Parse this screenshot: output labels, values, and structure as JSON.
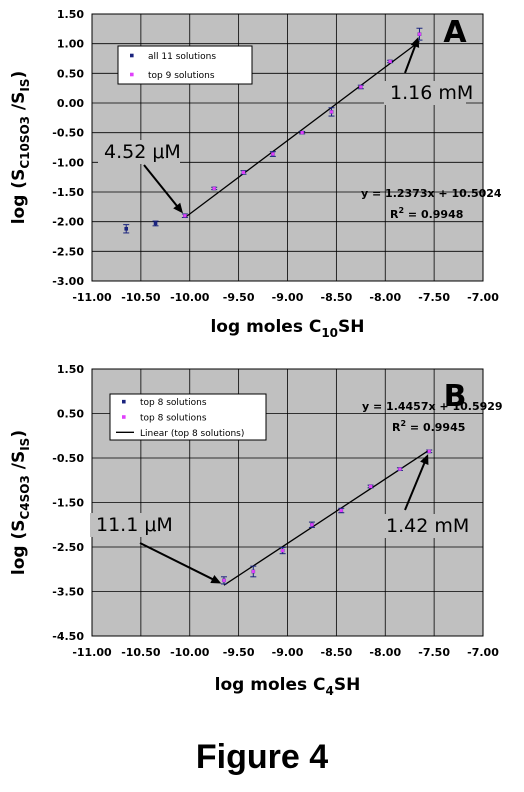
{
  "figure_title": "Figure 4",
  "chart_data": [
    {
      "type": "scatter",
      "panel_label": "A",
      "xlabel_main": "log moles C",
      "xlabel_sub": "10",
      "xlabel_tail": "SH",
      "ylabel_main": "log (S",
      "ylabel_sub1": "C10SO3",
      "ylabel_mid": " /S",
      "ylabel_sub2": "IS",
      "ylabel_tail": ")",
      "xlim": [
        -11.0,
        -7.0
      ],
      "ylim": [
        -3.0,
        1.5
      ],
      "x_ticks": [
        -11.0,
        -10.5,
        -10.0,
        -9.5,
        -9.0,
        -8.5,
        -8.0,
        -7.5,
        -7.0
      ],
      "x_tick_labels": [
        "-11.00",
        "-10.50",
        "-10.00",
        "-9.50",
        "-9.00",
        "-8.50",
        "-8.00",
        "-7.50",
        "-7.00"
      ],
      "y_ticks": [
        1.5,
        1.0,
        0.5,
        0.0,
        -0.5,
        -1.0,
        -1.5,
        -2.0,
        -2.5,
        -3.0
      ],
      "y_tick_labels": [
        "1.50",
        "1.00",
        "0.50",
        "0.00",
        "-0.50",
        "-1.00",
        "-1.50",
        "-2.00",
        "-2.50",
        "-3.00"
      ],
      "grid": true,
      "legend_position": "top-left",
      "series": [
        {
          "name": "all 11 solutions",
          "color": "#1a237e",
          "x": [
            -10.65,
            -10.35,
            -10.05,
            -9.75,
            -9.45,
            -9.15,
            -8.85,
            -8.55,
            -8.25,
            -7.95,
            -7.65
          ],
          "y": [
            -2.12,
            -2.03,
            -1.9,
            -1.44,
            -1.17,
            -0.86,
            -0.5,
            -0.15,
            0.27,
            0.7,
            1.16
          ],
          "err": [
            0.07,
            0.04,
            0.03,
            0.02,
            0.03,
            0.04,
            0.02,
            0.07,
            0.03,
            0.02,
            0.1
          ]
        },
        {
          "name": "top 9 solutions",
          "color": "#e040fb",
          "x": [
            -10.05,
            -9.75,
            -9.45,
            -9.15,
            -8.85,
            -8.55,
            -8.25,
            -7.95,
            -7.65
          ],
          "y": [
            -1.9,
            -1.44,
            -1.17,
            -0.86,
            -0.5,
            -0.15,
            0.27,
            0.7,
            1.16
          ]
        }
      ],
      "fit_line": {
        "x": [
          -10.05,
          -7.65
        ],
        "slope": 1.2373,
        "intercept": 10.5024
      },
      "equation": "y = 1.2373x + 10.5024",
      "r2_prefix": "R",
      "r2_sup": "2",
      "r2_value": " = 0.9948",
      "annotations": [
        {
          "text": "4.52 μM",
          "target_x": -10.05,
          "target_y": -1.9
        },
        {
          "text": "1.16 mM",
          "target_x": -7.65,
          "target_y": 1.16
        }
      ]
    },
    {
      "type": "scatter",
      "panel_label": "B",
      "xlabel_main": "log moles C",
      "xlabel_sub": "4",
      "xlabel_tail": "SH",
      "ylabel_main": "log (S",
      "ylabel_sub1": "C4SO3",
      "ylabel_mid": " /S",
      "ylabel_sub2": "IS",
      "ylabel_tail": ")",
      "xlim": [
        -11.0,
        -7.0
      ],
      "ylim": [
        -4.5,
        1.5
      ],
      "x_ticks": [
        -11.0,
        -10.5,
        -10.0,
        -9.5,
        -9.0,
        -8.5,
        -8.0,
        -7.5,
        -7.0
      ],
      "x_tick_labels": [
        "-11.00",
        "-10.50",
        "-10.00",
        "-9.50",
        "-9.00",
        "-8.50",
        "-8.00",
        "-7.50",
        "-7.00"
      ],
      "y_ticks": [
        1.5,
        0.5,
        -0.5,
        -1.5,
        -2.5,
        -3.5,
        -4.5
      ],
      "y_tick_labels": [
        "1.50",
        "0.50",
        "-0.50",
        "-1.50",
        "-2.50",
        "-3.50",
        "-4.50"
      ],
      "grid": true,
      "legend_position": "top-left",
      "series": [
        {
          "name": "top 8 solutions",
          "color": "#1a237e",
          "x": [
            -9.65,
            -9.35,
            -9.05,
            -8.75,
            -8.45,
            -8.15,
            -7.85,
            -7.55
          ],
          "y": [
            -3.25,
            -3.05,
            -2.58,
            -2.0,
            -1.68,
            -1.14,
            -0.75,
            -0.35
          ],
          "err": [
            0.08,
            0.12,
            0.07,
            0.06,
            0.05,
            0.03,
            0.03,
            0.03
          ]
        },
        {
          "name": "top 8 solutions",
          "color": "#e040fb",
          "x": [
            -9.65,
            -9.35,
            -9.05,
            -8.75,
            -8.45,
            -8.15,
            -7.85,
            -7.55
          ],
          "y": [
            -3.25,
            -3.05,
            -2.58,
            -2.0,
            -1.68,
            -1.14,
            -0.75,
            -0.35
          ]
        }
      ],
      "line_series_name": "Linear (top 8 solutions)",
      "fit_line": {
        "x": [
          -9.65,
          -7.55
        ],
        "slope": 1.4457,
        "intercept": 10.5929
      },
      "equation": "y = 1.4457x + 10.5929",
      "r2_prefix": "R",
      "r2_sup": "2",
      "r2_value": " = 0.9945",
      "annotations": [
        {
          "text": "11.1 μM",
          "target_x": -9.65,
          "target_y": -3.35
        },
        {
          "text": "1.42 mM",
          "target_x": -7.55,
          "target_y": -0.35
        }
      ]
    }
  ]
}
